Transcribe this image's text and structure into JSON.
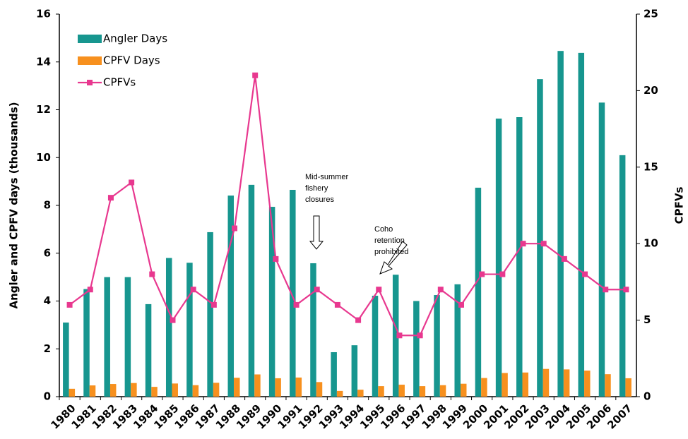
{
  "chart_data": {
    "type": "bar",
    "y_axis_label": "Angler and CPFV days (thousands)",
    "y2_axis_label": "CPFVs",
    "categories": [
      "1980",
      "1981",
      "1982",
      "1983",
      "1984",
      "1985",
      "1986",
      "1987",
      "1988",
      "1989",
      "1990",
      "1991",
      "1992",
      "1993",
      "1994",
      "1995",
      "1996",
      "1997",
      "1998",
      "1999",
      "2000",
      "2001",
      "2002",
      "2003",
      "2004",
      "2005",
      "2006",
      "2007"
    ],
    "series": [
      {
        "name": "Angler Days",
        "type": "bar",
        "color": "#17968f",
        "values": [
          3.1,
          4.5,
          5.0,
          5.0,
          3.87,
          5.8,
          5.6,
          6.88,
          8.41,
          8.86,
          7.94,
          8.65,
          5.58,
          1.86,
          2.15,
          4.22,
          5.1,
          4.0,
          4.25,
          4.7,
          8.74,
          11.63,
          11.69,
          13.28,
          14.46,
          14.38,
          12.3,
          10.1
        ]
      },
      {
        "name": "CPFV Days",
        "type": "bar",
        "color": "#f7901e",
        "values": [
          0.33,
          0.47,
          0.53,
          0.57,
          0.41,
          0.55,
          0.48,
          0.58,
          0.79,
          0.93,
          0.77,
          0.8,
          0.61,
          0.24,
          0.29,
          0.44,
          0.5,
          0.44,
          0.48,
          0.54,
          0.78,
          0.99,
          1.01,
          1.16,
          1.14,
          1.09,
          0.94,
          0.77
        ]
      },
      {
        "name": "CPFVs",
        "type": "line",
        "axis": "y2",
        "color": "#e8388f",
        "values": [
          6,
          7,
          13,
          14,
          8,
          5,
          7,
          6,
          11,
          21,
          9,
          6,
          7,
          6,
          5,
          7,
          4,
          4,
          7,
          6,
          8,
          8,
          10,
          10,
          9,
          8,
          7,
          7
        ]
      }
    ],
    "ylim": [
      0,
      16
    ],
    "yticks": [
      0,
      2,
      4,
      6,
      8,
      10,
      12,
      14,
      16
    ],
    "y2lim": [
      0,
      25
    ],
    "y2ticks": [
      0,
      5,
      10,
      15,
      20,
      25
    ],
    "legend": "top-left",
    "annotations": [
      {
        "lines": [
          "Mid-summer",
          "fishery",
          "closures"
        ]
      },
      {
        "lines": [
          "Coho",
          "retention",
          "prohibited"
        ]
      }
    ]
  }
}
